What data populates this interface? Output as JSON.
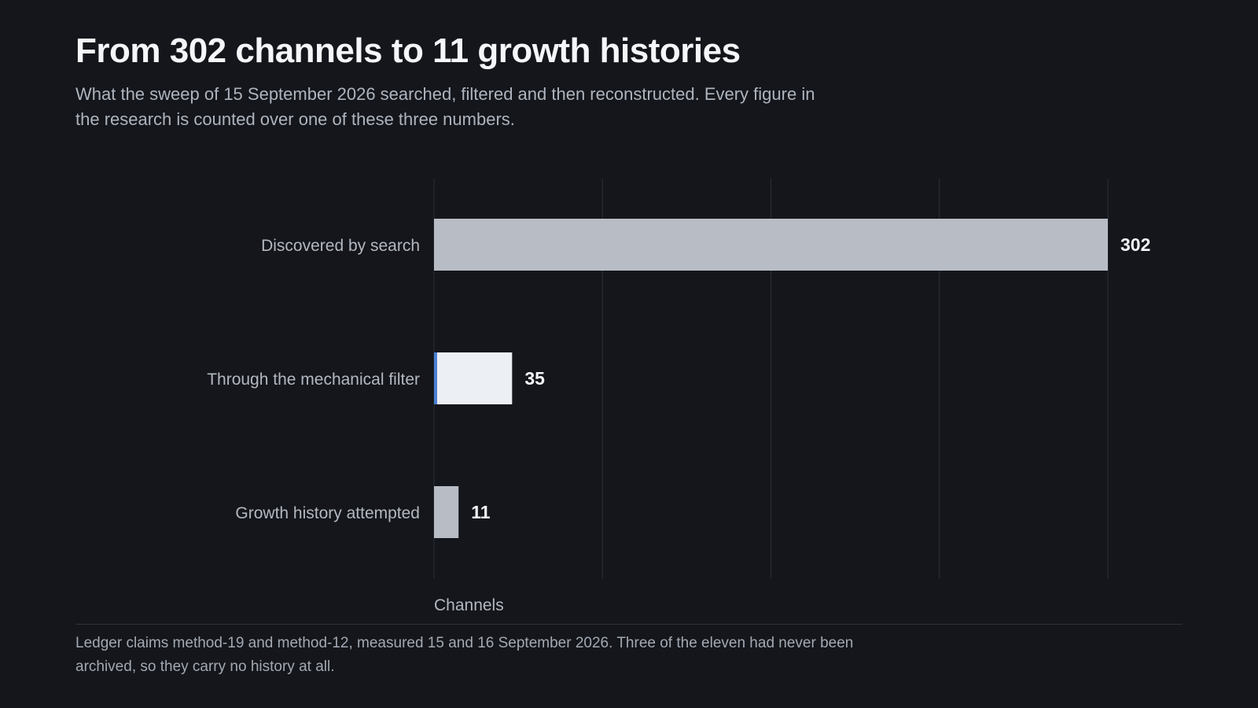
{
  "header": {
    "title": "From 302 channels to 11 growth histories",
    "subtitle": "What the sweep of 15 September 2026 searched, filtered and then reconstructed. Every figure in the research is counted over one of these three numbers."
  },
  "chart_data": {
    "type": "bar",
    "orientation": "horizontal",
    "title": "From 302 channels to 11 growth histories",
    "xlabel": "Channels",
    "ylabel": "",
    "xlim": [
      0,
      302
    ],
    "grid": true,
    "categories": [
      "Discovered by search",
      "Through the mechanical filter",
      "Growth history attempted"
    ],
    "values": [
      302,
      35,
      11
    ],
    "data_labels": [
      "302",
      "35",
      "11"
    ],
    "colors": {
      "default_bar": "#b8bcc5",
      "highlight_bar": "#eceff4",
      "highlight_accent": "#4a7fd4",
      "gridline": "#2b2f37",
      "category_label": "#b3b8c1",
      "data_label": "#f4f6f9"
    },
    "highlight_index": 1
  },
  "footer": {
    "note": "Ledger claims method-19 and method-12, measured 15 and 16 September 2026. Three of the eleven had never been archived, so they carry no history at all."
  }
}
